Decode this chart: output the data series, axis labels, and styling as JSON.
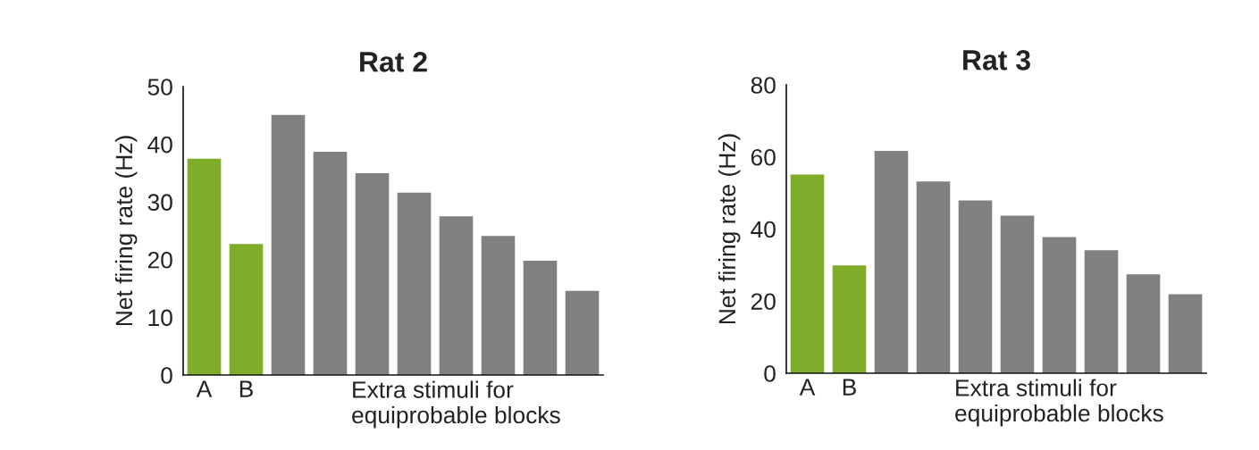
{
  "chart_data": [
    {
      "type": "bar",
      "title": "Rat 2",
      "ylabel": "Net firing rate (Hz)",
      "xlabel": "Extra stimuli for\nequiprobable blocks",
      "categories": [
        "A",
        "B",
        null,
        null,
        null,
        null,
        null,
        null,
        null,
        null
      ],
      "values": [
        37.5,
        22.7,
        45.1,
        38.7,
        35.0,
        31.6,
        27.5,
        24.1,
        19.8,
        14.6
      ],
      "colors": [
        "#7fad2a",
        "#7fad2a",
        "#808080",
        "#808080",
        "#808080",
        "#808080",
        "#808080",
        "#808080",
        "#808080",
        "#808080"
      ],
      "ylim": [
        0,
        50
      ],
      "yticks": [
        0,
        10,
        20,
        30,
        40,
        50
      ]
    },
    {
      "type": "bar",
      "title": "Rat 3",
      "ylabel": "Net firing rate (Hz)",
      "xlabel": "Extra stimuli for\nequiprobable blocks",
      "categories": [
        "A",
        "B",
        null,
        null,
        null,
        null,
        null,
        null,
        null,
        null
      ],
      "values": [
        55.1,
        29.9,
        61.7,
        53.2,
        47.9,
        43.7,
        37.8,
        34.1,
        27.4,
        21.9
      ],
      "colors": [
        "#7fad2a",
        "#7fad2a",
        "#808080",
        "#808080",
        "#808080",
        "#808080",
        "#808080",
        "#808080",
        "#808080",
        "#808080"
      ],
      "ylim": [
        0,
        80
      ],
      "yticks": [
        0,
        20,
        40,
        60,
        80
      ]
    }
  ]
}
